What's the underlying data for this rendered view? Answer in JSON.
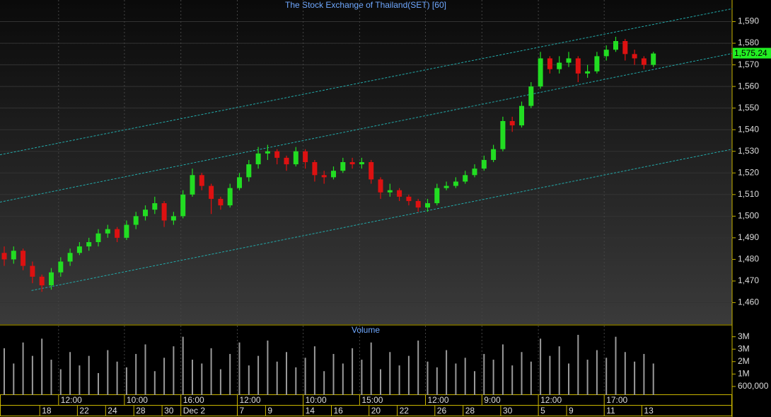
{
  "chart_data": [
    {
      "type": "candlestick",
      "title": "The Stock Exchange of Thailand(SET) [60]",
      "open": [
        1483,
        1480,
        1484,
        1477,
        1472,
        1468,
        1474,
        1479,
        1483,
        1486,
        1488,
        1492,
        1494,
        1490,
        1496,
        1500,
        1503,
        1506,
        1498,
        1500,
        1510,
        1519,
        1514,
        1508,
        1505,
        1513,
        1518,
        1524,
        1529,
        1530,
        1527,
        1524,
        1530,
        1525,
        1519,
        1518,
        1521,
        1525,
        1524,
        1525,
        1517,
        1511,
        1512,
        1509,
        1507,
        1504,
        1506,
        1513,
        1514,
        1516,
        1519,
        1522,
        1526,
        1531,
        1544,
        1542,
        1551,
        1560,
        1573,
        1568,
        1571,
        1573,
        1566,
        1567,
        1574,
        1577,
        1581,
        1575,
        1573,
        1570
      ],
      "high": [
        1486,
        1486,
        1485,
        1479,
        1473,
        1476,
        1481,
        1485,
        1488,
        1490,
        1494,
        1496,
        1495,
        1498,
        1502,
        1505,
        1509,
        1507,
        1502,
        1512,
        1522,
        1520,
        1515,
        1509,
        1515,
        1520,
        1526,
        1532,
        1533,
        1531,
        1528,
        1532,
        1531,
        1526,
        1521,
        1523,
        1527,
        1527,
        1527,
        1526,
        1518,
        1515,
        1513,
        1510,
        1508,
        1508,
        1515,
        1516,
        1518,
        1521,
        1524,
        1528,
        1533,
        1546,
        1546,
        1553,
        1562,
        1576,
        1574,
        1574,
        1576,
        1574,
        1570,
        1576,
        1579,
        1583,
        1582,
        1577,
        1574,
        1576
      ],
      "low": [
        1477,
        1478,
        1475,
        1469,
        1465,
        1466,
        1472,
        1477,
        1482,
        1484,
        1486,
        1490,
        1488,
        1489,
        1494,
        1498,
        1501,
        1495,
        1496,
        1499,
        1509,
        1512,
        1501,
        1503,
        1504,
        1512,
        1516,
        1522,
        1526,
        1524,
        1521,
        1523,
        1522,
        1516,
        1515,
        1517,
        1520,
        1522,
        1522,
        1515,
        1508,
        1509,
        1507,
        1505,
        1502,
        1502,
        1505,
        1512,
        1513,
        1515,
        1518,
        1521,
        1525,
        1530,
        1539,
        1541,
        1550,
        1559,
        1566,
        1566,
        1569,
        1562,
        1564,
        1566,
        1572,
        1576,
        1572,
        1570,
        1568,
        1569
      ],
      "close": [
        1480,
        1484,
        1477,
        1472,
        1468,
        1474,
        1479,
        1483,
        1486,
        1488,
        1492,
        1494,
        1490,
        1496,
        1500,
        1503,
        1506,
        1498,
        1500,
        1510,
        1519,
        1514,
        1508,
        1505,
        1513,
        1518,
        1524,
        1529,
        1530,
        1527,
        1524,
        1530,
        1525,
        1519,
        1518,
        1521,
        1525,
        1524,
        1525,
        1517,
        1511,
        1512,
        1509,
        1507,
        1504,
        1506,
        1513,
        1514,
        1516,
        1519,
        1522,
        1526,
        1531,
        1544,
        1542,
        1551,
        1560,
        1573,
        1568,
        1571,
        1573,
        1566,
        1567,
        1574,
        1577,
        1581,
        1575,
        1573,
        1570,
        1575.24
      ],
      "last_label": "1,575.24",
      "times": [
        null,
        null,
        null,
        null,
        null,
        null,
        "12:00",
        null,
        null,
        null,
        null,
        null,
        null,
        "10:00",
        null,
        null,
        null,
        null,
        null,
        "16:00",
        null,
        null,
        null,
        null,
        null,
        "12:00",
        null,
        null,
        null,
        null,
        null,
        null,
        "10:00",
        null,
        null,
        null,
        null,
        null,
        "15:00",
        null,
        null,
        null,
        null,
        null,
        null,
        "12:00",
        null,
        null,
        null,
        null,
        null,
        "9:00",
        null,
        null,
        null,
        null,
        null,
        "12:00",
        null,
        null,
        null,
        null,
        null,
        null,
        "17:00",
        null,
        null,
        null,
        null,
        null
      ],
      "dates": [
        null,
        null,
        null,
        null,
        "18",
        null,
        null,
        null,
        "22",
        null,
        null,
        "24",
        null,
        null,
        "28",
        null,
        null,
        "30",
        null,
        "Dec 2",
        null,
        null,
        null,
        null,
        null,
        "7",
        null,
        null,
        "9",
        null,
        null,
        null,
        "14",
        null,
        null,
        "16",
        null,
        null,
        null,
        "20",
        null,
        null,
        "22",
        null,
        null,
        null,
        "26",
        null,
        null,
        "28",
        null,
        null,
        null,
        "30",
        null,
        null,
        null,
        "5",
        null,
        null,
        "9",
        null,
        null,
        null,
        "11",
        null,
        null,
        null,
        "13",
        null
      ],
      "channels": [
        [
          [
            -0.45,
            1528.4
          ],
          [
            77.4,
            1596
          ]
        ],
        [
          [
            -0.45,
            1506.5
          ],
          [
            77.4,
            1575.3
          ]
        ],
        [
          [
            2.9,
            1465.6
          ],
          [
            77.4,
            1531
          ]
        ]
      ],
      "ylim": [
        1450,
        1600
      ],
      "yticks": [
        {
          "value": 1460,
          "label": "1,460"
        },
        {
          "value": 1470,
          "label": "1,470"
        },
        {
          "value": 1480,
          "label": "1,480"
        },
        {
          "value": 1490,
          "label": "1,490"
        },
        {
          "value": 1500,
          "label": "1,500"
        },
        {
          "value": 1510,
          "label": "1,510"
        },
        {
          "value": 1520,
          "label": "1,520"
        },
        {
          "value": 1530,
          "label": "1,530"
        },
        {
          "value": 1540,
          "label": "1,540"
        },
        {
          "value": 1550,
          "label": "1,550"
        },
        {
          "value": 1560,
          "label": "1,560"
        },
        {
          "value": 1570,
          "label": "1,570"
        },
        {
          "value": 1580,
          "label": "1,580"
        },
        {
          "value": 1590,
          "label": "1,590"
        }
      ],
      "up_color": "#22dd22",
      "down_color": "#dd1111",
      "channel_color": "#22aaaa",
      "grid": true
    },
    {
      "type": "bar",
      "title": "Volume",
      "color": "#9a9a9a",
      "values": [
        2600000,
        1800000,
        2900000,
        2200000,
        3100000,
        2000000,
        1500000,
        2400000,
        1700000,
        2200000,
        1300000,
        2500000,
        1900000,
        1600000,
        2300000,
        2800000,
        1400000,
        2100000,
        2700000,
        3200000,
        2000000,
        1800000,
        2600000,
        1500000,
        2300000,
        2900000,
        1700000,
        2200000,
        3000000,
        1900000,
        2400000,
        1600000,
        2100000,
        2700000,
        1400000,
        2300000,
        1800000,
        2600000,
        2000000,
        2900000,
        1500000,
        2400000,
        1700000,
        2200000,
        3000000,
        1900000,
        1600000,
        2500000,
        1800000,
        2100000,
        1400000,
        2300000,
        2000000,
        2800000,
        1700000,
        2400000,
        1900000,
        3100000,
        2200000,
        2700000,
        1800000,
        3300000,
        2000000,
        2500000,
        2100000,
        3200000,
        2400000,
        1900000,
        2300000,
        1800000
      ],
      "ylim": [
        150000,
        3780000
      ],
      "yticks": [
        {
          "value": 600000,
          "label": "600,000"
        },
        {
          "value": 1250000,
          "label": "1M"
        },
        {
          "value": 1900000,
          "label": "2M"
        },
        {
          "value": 2550000,
          "label": "3M"
        },
        {
          "value": 3200000,
          "label": "3M"
        }
      ]
    }
  ]
}
